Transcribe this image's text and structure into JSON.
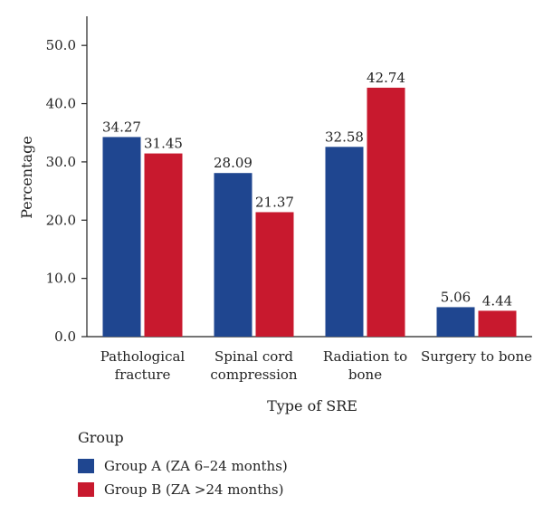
{
  "chart_data": {
    "type": "bar",
    "categories": [
      [
        "Pathological",
        "fracture"
      ],
      [
        "Spinal cord",
        "compression"
      ],
      [
        "Radiation to",
        "bone"
      ],
      [
        "Surgery to bone"
      ]
    ],
    "series": [
      {
        "name": "Group A (ZA 6–24 months)",
        "color": "#1f4690",
        "values": [
          34.27,
          28.09,
          32.58,
          5.06
        ],
        "labels": [
          "34.27",
          "28.09",
          "32.58",
          "5.06"
        ]
      },
      {
        "name": "Group B (ZA >24 months)",
        "color": "#c8192e",
        "values": [
          31.45,
          21.37,
          42.74,
          4.44
        ],
        "labels": [
          "31.45",
          "21.37",
          "42.74",
          "4.44"
        ]
      }
    ],
    "xlabel": "Type of SRE",
    "ylabel": "Percentage",
    "ylim": [
      0,
      55
    ],
    "yticks": [
      "0.0",
      "10.0",
      "20.0",
      "30.0",
      "40.0",
      "50.0"
    ],
    "legend": {
      "title": "Group",
      "position": "bottom-left"
    },
    "grid": false
  }
}
